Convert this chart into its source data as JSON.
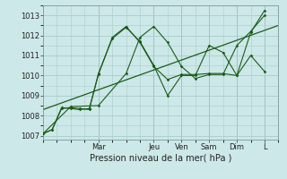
{
  "background_color": "#cde8e8",
  "grid_color": "#a8cccc",
  "line_color": "#1a5c1a",
  "xlabel": "Pression niveau de la mer( hPa )",
  "ylim": [
    1006.8,
    1013.5
  ],
  "yticks": [
    1007,
    1008,
    1009,
    1010,
    1011,
    1012,
    1013
  ],
  "xlim": [
    0,
    8.5
  ],
  "day_labels": [
    "Mar",
    "Jeu",
    "Ven",
    "Sam",
    "Dim",
    "L"
  ],
  "day_positions": [
    2.0,
    4.0,
    5.0,
    6.0,
    7.0,
    8.0
  ],
  "series": [
    {
      "x": [
        0,
        0.33,
        0.67,
        1.0,
        1.33,
        1.67,
        2.0,
        2.5,
        3.0,
        3.5,
        4.0,
        4.5,
        5.0,
        5.5,
        6.0,
        6.5,
        7.0,
        7.5,
        8.0
      ],
      "y": [
        1007.1,
        1007.3,
        1008.35,
        1008.4,
        1008.35,
        1008.3,
        1010.1,
        1011.85,
        1012.4,
        1011.7,
        1010.5,
        1009.0,
        1010.0,
        1010.0,
        1011.5,
        1011.15,
        1010.0,
        1012.15,
        1013.25
      ]
    },
    {
      "x": [
        0,
        0.33,
        0.67,
        1.0,
        1.33,
        1.67,
        2.0,
        2.5,
        3.0,
        3.5,
        4.0,
        4.5,
        5.0,
        5.5,
        6.0,
        6.5,
        7.0,
        7.5,
        8.0
      ],
      "y": [
        1007.1,
        1007.3,
        1008.4,
        1008.35,
        1008.3,
        1008.35,
        1010.05,
        1011.9,
        1012.45,
        1011.65,
        1010.45,
        1009.8,
        1010.05,
        1010.05,
        1010.1,
        1010.1,
        1010.0,
        1011.0,
        1010.2
      ]
    },
    {
      "x": [
        0,
        1.0,
        2.0,
        3.0,
        3.5,
        4.0,
        4.5,
        5.0,
        5.5,
        6.0,
        6.5,
        7.0,
        7.5,
        8.0
      ],
      "y": [
        1007.1,
        1008.45,
        1008.5,
        1010.1,
        1011.9,
        1012.45,
        1011.65,
        1010.45,
        1009.85,
        1010.05,
        1010.05,
        1011.5,
        1012.2,
        1013.0
      ]
    }
  ],
  "trend_line": {
    "x": [
      0,
      8.5
    ],
    "y": [
      1008.3,
      1012.5
    ]
  },
  "sep_line_color": "#7a9a9a",
  "ylabel_fontsize": 6,
  "xlabel_fontsize": 7,
  "tick_fontsize": 6
}
